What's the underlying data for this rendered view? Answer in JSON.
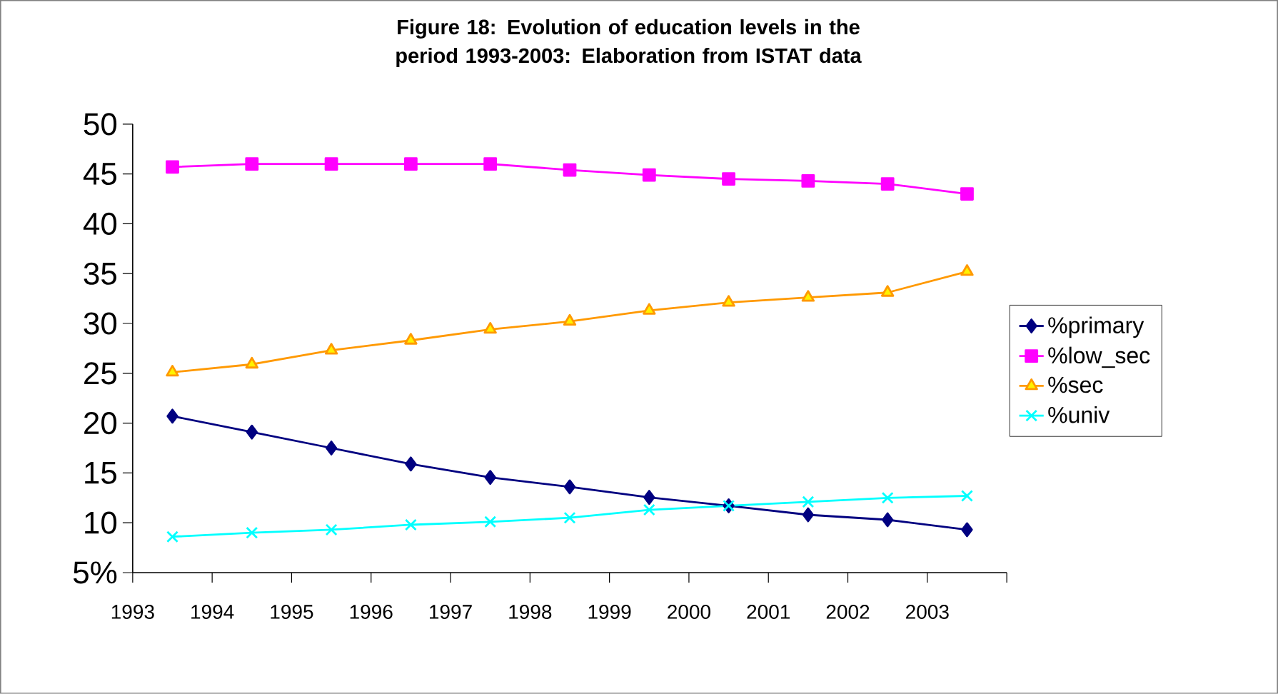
{
  "chart_data": {
    "type": "line",
    "title": "Figure 18: Evolution of education levels in the period 1993-2003: Elaboration from ISTAT data",
    "x": [
      1993.5,
      1994.5,
      1995.5,
      1996.5,
      1997.5,
      1998.5,
      1999.5,
      2000.5,
      2001.5,
      2002.5,
      2003.5
    ],
    "xlim": [
      1993,
      2004
    ],
    "xticks": [
      1993,
      1994,
      1995,
      1996,
      1997,
      1998,
      1999,
      2000,
      2001,
      2002,
      2003,
      {
        "value": 2004,
        "label": null
      }
    ],
    "ylim": [
      5,
      50
    ],
    "yticks": [
      {
        "value": 5,
        "label": "5%"
      },
      10,
      15,
      20,
      25,
      30,
      35,
      40,
      45,
      50
    ],
    "grid": false,
    "legend": "right",
    "line_style": "solid",
    "series": [
      {
        "name": "%primary",
        "color": "#000080",
        "marker": "diamond",
        "values": [
          20.7,
          19.1,
          17.5,
          15.9,
          14.55,
          13.6,
          12.55,
          11.7,
          10.8,
          10.3,
          9.3
        ]
      },
      {
        "name": "%low_sec",
        "color": "#ff00ff",
        "marker": "square",
        "values": [
          45.7,
          46.0,
          46.0,
          46.0,
          46.0,
          45.4,
          44.9,
          44.5,
          44.3,
          44.0,
          43.0
        ]
      },
      {
        "name": "%sec",
        "color": "#ff9900",
        "marker": "triangle",
        "values": [
          25.1,
          25.9,
          27.3,
          28.3,
          29.4,
          30.2,
          31.3,
          32.1,
          32.6,
          33.1,
          35.2
        ]
      },
      {
        "name": "%univ",
        "color": "#00ffff",
        "marker": "cross",
        "values": [
          8.6,
          9.0,
          9.3,
          9.8,
          10.1,
          10.5,
          11.3,
          11.7,
          12.1,
          12.5,
          12.7
        ]
      }
    ]
  }
}
